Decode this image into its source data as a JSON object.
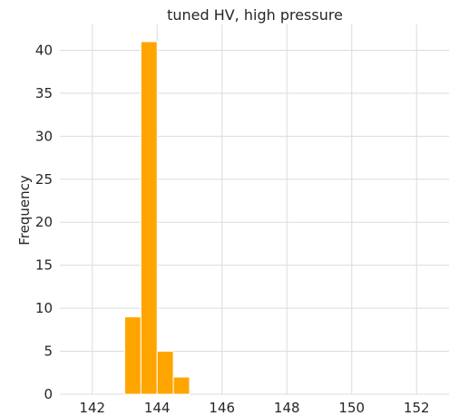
{
  "chart_data": {
    "type": "bar",
    "title": "tuned HV, high pressure",
    "xlabel": "",
    "ylabel": "Frequency",
    "xlim": [
      141,
      153
    ],
    "ylim": [
      0,
      43
    ],
    "xticks": [
      142,
      144,
      146,
      148,
      150,
      152
    ],
    "yticks": [
      0,
      5,
      10,
      15,
      20,
      25,
      30,
      35,
      40
    ],
    "grid": true,
    "bar_color": "#ffa500",
    "bins": [
      {
        "start": 143.0,
        "end": 143.5,
        "value": 9
      },
      {
        "start": 143.5,
        "end": 144.0,
        "value": 41
      },
      {
        "start": 144.0,
        "end": 144.5,
        "value": 5
      },
      {
        "start": 144.5,
        "end": 145.0,
        "value": 2
      }
    ]
  }
}
